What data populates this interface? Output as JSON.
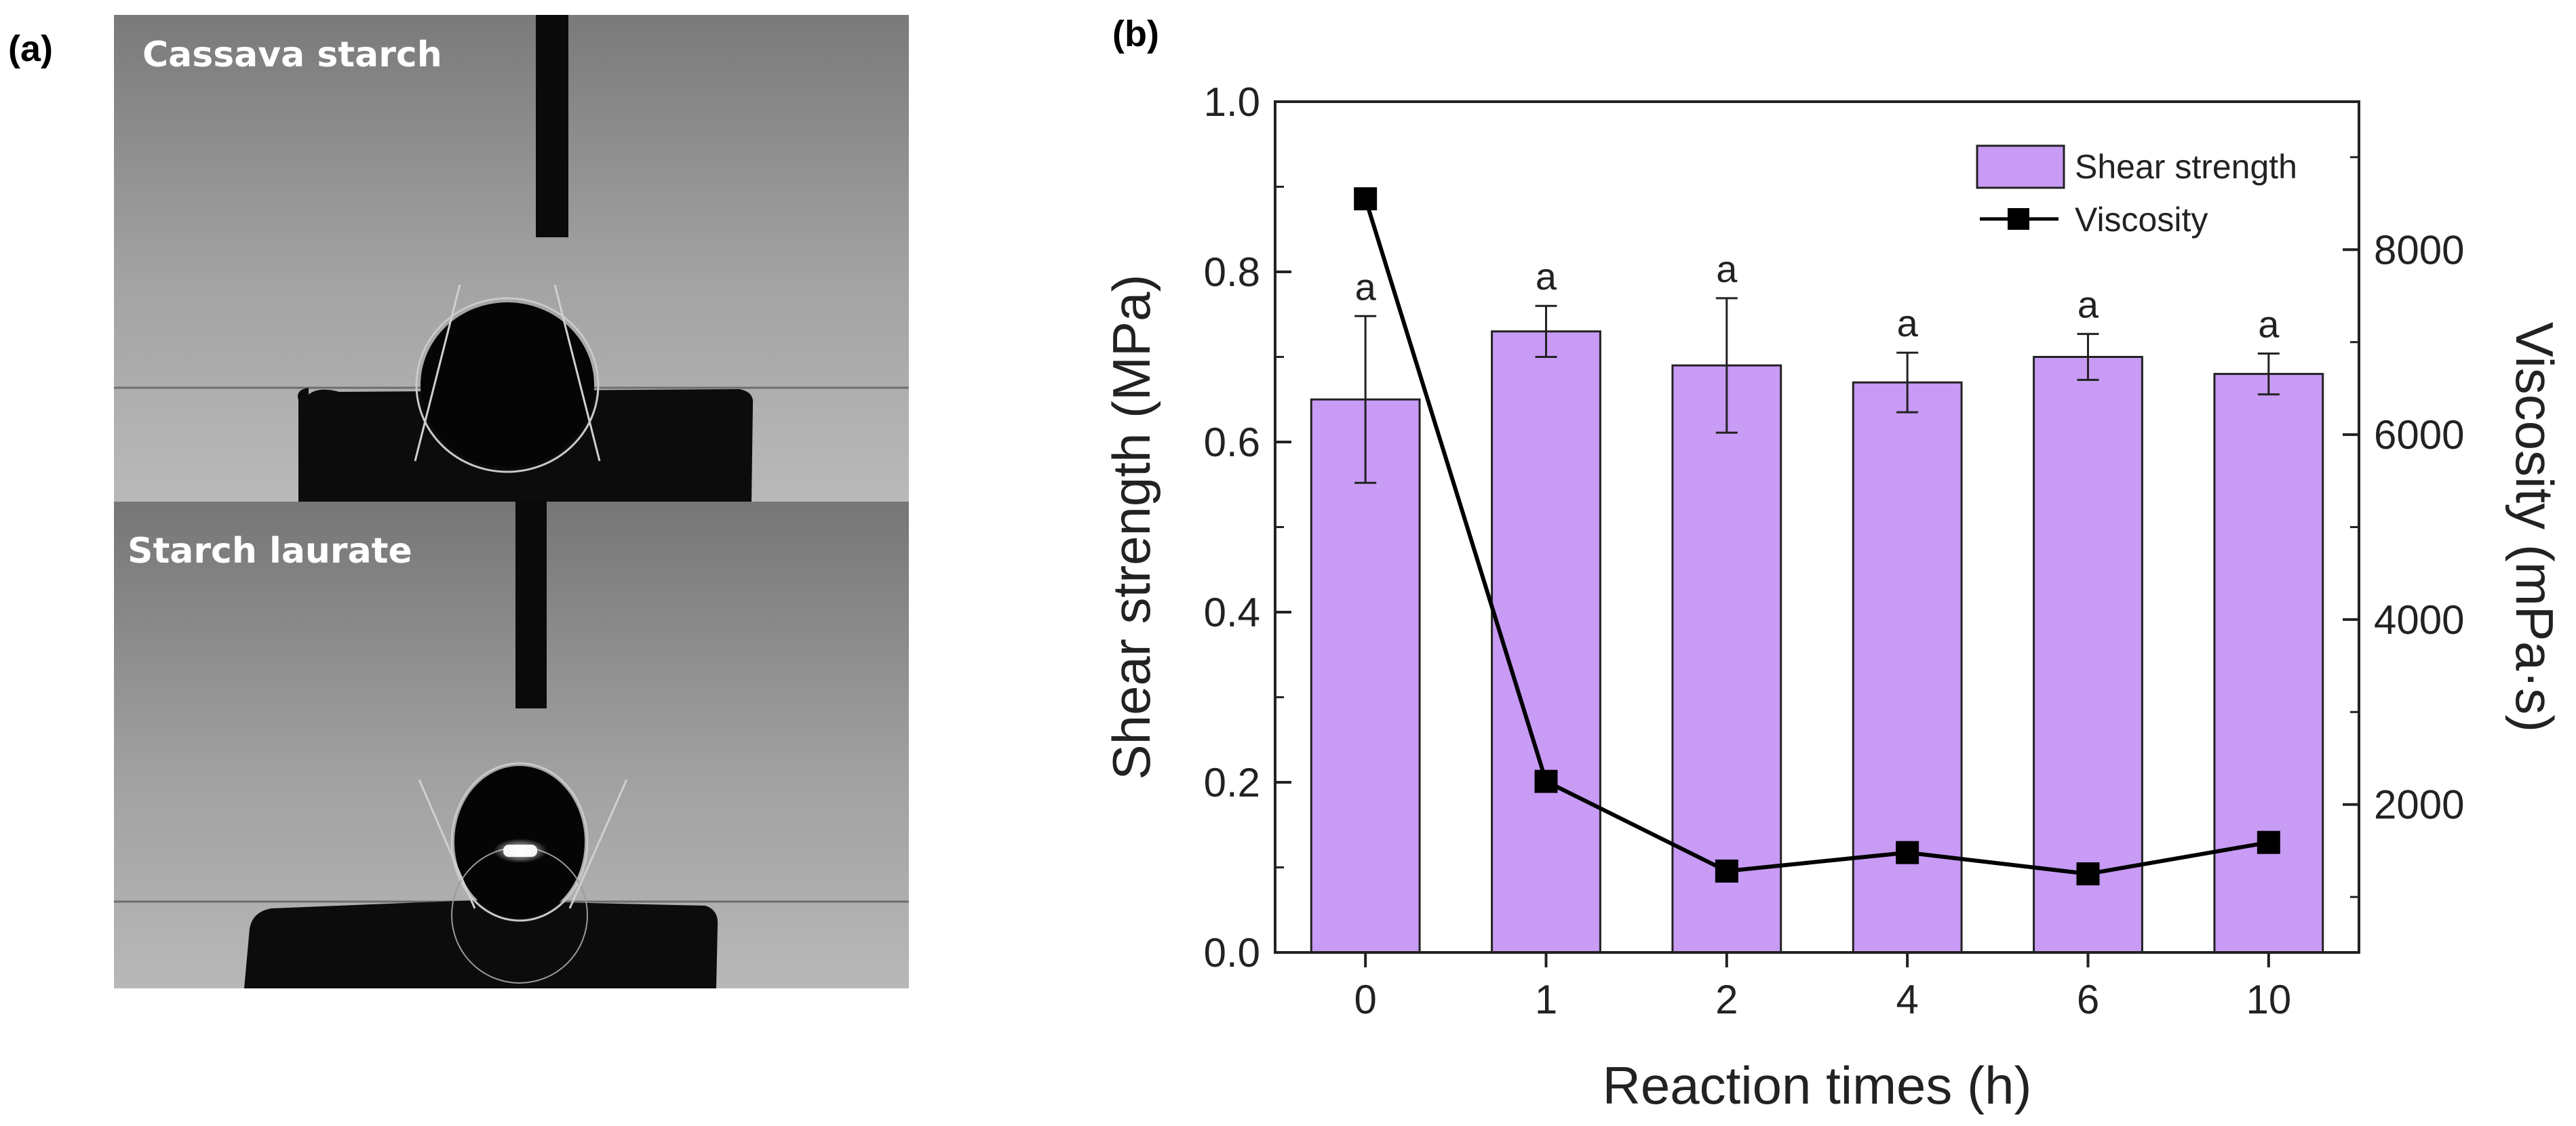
{
  "panel_a": {
    "label": "(a)",
    "photos": [
      {
        "label": "Cassava starch"
      },
      {
        "label": "Starch laurate"
      }
    ]
  },
  "panel_b_label": "(b)",
  "chart_data": {
    "type": "bar",
    "categories": [
      "0",
      "1",
      "2",
      "4",
      "6",
      "10"
    ],
    "xlabel": "Reaction times (h)",
    "ylabel": "Shear strength (MPa)",
    "y2label": "Viscosity (mPa·s)",
    "ylim": [
      0,
      1.0
    ],
    "yticks": [
      "0.0",
      "0.2",
      "0.4",
      "0.6",
      "0.8",
      "1.0"
    ],
    "y2lim": [
      400,
      9600
    ],
    "y2ticks": [
      "2000",
      "4000",
      "6000",
      "8000"
    ],
    "series": [
      {
        "name": "Shear strength",
        "type": "bar",
        "axis": "left",
        "color": "#c89bf5",
        "values": [
          0.65,
          0.73,
          0.69,
          0.67,
          0.7,
          0.68
        ],
        "errors": [
          0.098,
          0.03,
          0.079,
          0.035,
          0.027,
          0.024
        ],
        "significance": [
          "a",
          "a",
          "a",
          "a",
          "a",
          "a"
        ]
      },
      {
        "name": "Viscosity",
        "type": "line",
        "axis": "right",
        "color": "#000000",
        "marker": "square",
        "values": [
          8550,
          2250,
          1280,
          1480,
          1250,
          1590
        ]
      }
    ],
    "legend": {
      "position": "top-right",
      "entries": [
        "Shear strength",
        "Viscosity"
      ]
    }
  }
}
